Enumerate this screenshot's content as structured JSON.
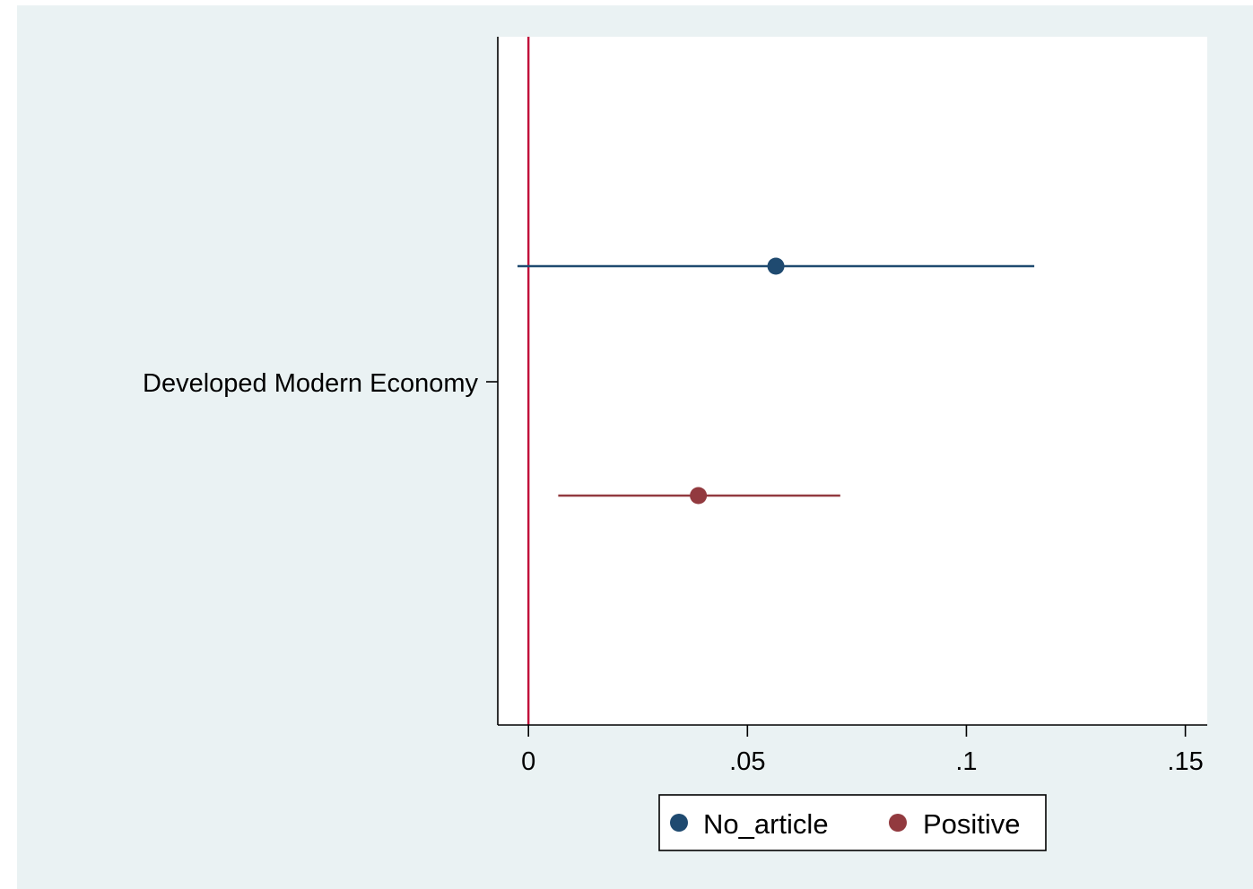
{
  "chart_data": {
    "type": "scatter",
    "subtype": "coefficient plot with confidence intervals (horizontal)",
    "title": "",
    "xlabel": "",
    "ylabel": "",
    "y_categories": [
      "Developed Modern Economy"
    ],
    "x_ticks": [
      {
        "value": 0,
        "label": "0"
      },
      {
        "value": 0.05,
        "label": ".05"
      },
      {
        "value": 0.1,
        "label": ".1"
      },
      {
        "value": 0.15,
        "label": ".15"
      }
    ],
    "xlim": [
      -0.007,
      0.155
    ],
    "reference_line": {
      "x": 0,
      "color": "#c0103a"
    },
    "series": [
      {
        "name": "No_article",
        "color": "#1f4a70",
        "category": "Developed Modern Economy",
        "estimate": 0.0565,
        "ci_low": -0.0025,
        "ci_high": 0.1155
      },
      {
        "name": "Positive",
        "color": "#923a3f",
        "category": "Developed Modern Economy",
        "estimate": 0.0388,
        "ci_low": 0.0068,
        "ci_high": 0.0712
      }
    ],
    "legend": {
      "position": "bottom",
      "entries": [
        "No_article",
        "Positive"
      ]
    },
    "grid": false,
    "background": {
      "outer": "#eaf2f3",
      "plot": "#ffffff"
    }
  }
}
